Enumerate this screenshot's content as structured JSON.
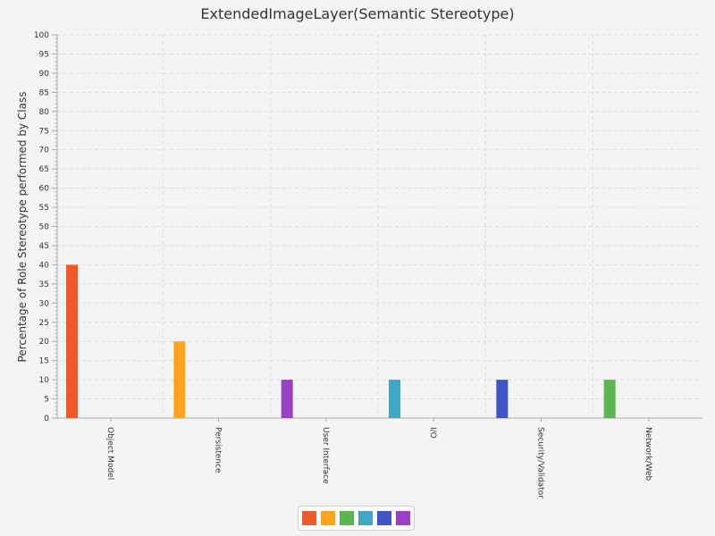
{
  "chart_data": {
    "type": "bar",
    "title": "ExtendedImageLayer(Semantic Stereotype)",
    "xlabel": "",
    "ylabel": "Percentage of Role Stereotype performed by Class",
    "ylim": [
      0,
      100
    ],
    "y_major_step": 5,
    "y_minor_step": 1,
    "grid": true,
    "legend_position": "bottom",
    "categories": [
      "Object Model",
      "Persistence",
      "User Interface",
      "I/O",
      "Security/Validator",
      "Network/Web"
    ],
    "values": [
      40,
      20,
      10,
      10,
      10,
      10
    ],
    "colors": [
      "#f05a28",
      "#ffa41c",
      "#9a3fc6",
      "#3fa6c6",
      "#3f56c6",
      "#5ab552"
    ],
    "legend_colors": [
      "#f05a28",
      "#ffa41c",
      "#5ab552",
      "#3fa6c6",
      "#3f56c6",
      "#9a3fc6"
    ]
  }
}
